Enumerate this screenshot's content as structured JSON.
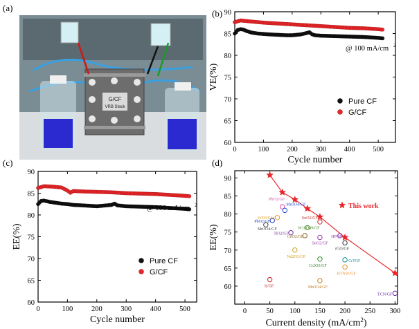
{
  "panels": {
    "a": {
      "label": "(a)",
      "photo_text": [
        "G/CF",
        "VRB Stack"
      ]
    },
    "b": {
      "label": "(b)",
      "annotation": "@ 100 mA/cm",
      "annotation_sup": "2"
    },
    "c": {
      "label": "(c)",
      "annotation": "@ 100 mA/cm",
      "annotation_sup": "2"
    },
    "d": {
      "label": "(d)",
      "this_work_label": "This work"
    }
  },
  "colors": {
    "pure_cf": "#111111",
    "gcf": "#e8262a",
    "this_work": "#e8262a"
  },
  "chart_data": [
    {
      "id": "b",
      "type": "scatter",
      "title": "",
      "xlabel": "Cycle number",
      "ylabel": "VE(%)",
      "xlim": [
        0,
        560
      ],
      "ylim": [
        60,
        90
      ],
      "xticks": [
        0,
        100,
        200,
        300,
        400,
        500
      ],
      "yticks": [
        60,
        65,
        70,
        75,
        80,
        85,
        90
      ],
      "legend": "right",
      "series": [
        {
          "name": "Pure CF",
          "x": [
            0,
            10,
            20,
            30,
            40,
            60,
            80,
            100,
            120,
            150,
            180,
            200,
            230,
            250,
            260,
            270,
            280,
            300,
            350,
            400,
            450,
            500,
            515
          ],
          "y": [
            85.0,
            85.8,
            86.0,
            85.9,
            85.6,
            85.2,
            85.0,
            84.9,
            84.8,
            84.7,
            84.6,
            84.6,
            84.8,
            85.1,
            85.3,
            84.8,
            84.6,
            84.5,
            84.4,
            84.3,
            84.2,
            84.0,
            83.9
          ]
        },
        {
          "name": "G/CF",
          "x": [
            0,
            20,
            50,
            100,
            150,
            200,
            250,
            300,
            350,
            400,
            450,
            500,
            515
          ],
          "y": [
            87.6,
            88.0,
            87.8,
            87.5,
            87.3,
            87.1,
            86.9,
            86.7,
            86.5,
            86.3,
            86.2,
            86.0,
            85.9
          ]
        }
      ]
    },
    {
      "id": "c",
      "type": "scatter",
      "title": "",
      "xlabel": "Cycle number",
      "ylabel": "EE(%)",
      "xlim": [
        0,
        540
      ],
      "ylim": [
        60,
        90
      ],
      "xticks": [
        0,
        100,
        200,
        300,
        400,
        500
      ],
      "yticks": [
        60,
        65,
        70,
        75,
        80,
        85,
        90
      ],
      "legend": "right",
      "series": [
        {
          "name": "Pure CF",
          "x": [
            0,
            10,
            20,
            40,
            60,
            80,
            100,
            120,
            150,
            200,
            250,
            260,
            270,
            300,
            350,
            400,
            450,
            500,
            515
          ],
          "y": [
            82.5,
            83.2,
            83.3,
            83.0,
            82.8,
            82.6,
            82.5,
            82.3,
            82.2,
            82.0,
            82.3,
            82.6,
            82.2,
            82.0,
            81.9,
            81.8,
            81.6,
            81.4,
            81.3
          ]
        },
        {
          "name": "G/CF",
          "x": [
            0,
            20,
            50,
            80,
            100,
            110,
            120,
            150,
            200,
            250,
            300,
            350,
            400,
            450,
            500,
            515
          ],
          "y": [
            86.2,
            86.6,
            86.5,
            86.3,
            85.6,
            85.1,
            85.5,
            85.4,
            85.3,
            85.2,
            85.0,
            84.9,
            84.8,
            84.6,
            84.4,
            84.3
          ]
        }
      ]
    },
    {
      "id": "d",
      "type": "scatter",
      "title": "",
      "xlabel": "Current density (mA/cm",
      "xlabel_sup": "2",
      "xlabel_close": ")",
      "ylabel": "EE(%)",
      "xlim": [
        -20,
        305
      ],
      "ylim": [
        55,
        92
      ],
      "xticks": [
        0,
        50,
        100,
        150,
        200,
        250,
        300
      ],
      "yticks": [
        60,
        65,
        70,
        75,
        80,
        85,
        90
      ],
      "this_work": {
        "name": "This work",
        "x": [
          50,
          75,
          100,
          125,
          150,
          200,
          300
        ],
        "y": [
          90.8,
          86.0,
          84.0,
          81.5,
          79.2,
          73.5,
          63.6
        ]
      },
      "literature": [
        {
          "label": "PbO2/GF",
          "x": 75,
          "y": 82.0,
          "color": "#d946a8"
        },
        {
          "label": "Mn3O4/GF",
          "x": 80,
          "y": 81.0,
          "color": "#1f4fcf"
        },
        {
          "label": "WO3/SAC",
          "x": 65,
          "y": 79.0,
          "color": "#e89a1a"
        },
        {
          "label": "PbO2/GF",
          "x": 55,
          "y": 78.2,
          "color": "#1f3fb0"
        },
        {
          "label": "Mn3O4/GF",
          "x": 42,
          "y": 77.0,
          "color": "#444444"
        },
        {
          "label": "SnO2/GF",
          "x": 150,
          "y": 77.8,
          "color": "#c0302c"
        },
        {
          "label": "W18O49/GF",
          "x": 125,
          "y": 76.2,
          "color": "#4b8a2a"
        },
        {
          "label": "TiO2/GF",
          "x": 92,
          "y": 74.8,
          "color": "#7b2fa0"
        },
        {
          "label": "CeO2/GF",
          "x": 120,
          "y": 74.0,
          "color": "#8a6a20"
        },
        {
          "label": "SnO2/GF",
          "x": 150,
          "y": 73.5,
          "color": "#9a3aa8"
        },
        {
          "label": "HPGF",
          "x": 190,
          "y": 74.0,
          "color": "#8a3ab0"
        },
        {
          "label": "rGO/GF",
          "x": 200,
          "y": 72.0,
          "color": "#333333"
        },
        {
          "label": "Nd2O3/GF",
          "x": 100,
          "y": 70.0,
          "color": "#c8a020"
        },
        {
          "label": "Cr2O3/GF",
          "x": 150,
          "y": 67.5,
          "color": "#2a8a2a"
        },
        {
          "label": "CrTGF",
          "x": 200,
          "y": 67.3,
          "color": "#1a8a9a"
        },
        {
          "label": "HTNW/GF",
          "x": 200,
          "y": 65.3,
          "color": "#e8902a"
        },
        {
          "label": "Ir/GF",
          "x": 50,
          "y": 61.8,
          "color": "#d02020"
        },
        {
          "label": "Mn3O4/GF",
          "x": 150,
          "y": 61.5,
          "color": "#c07a20"
        },
        {
          "label": "TCN/GF",
          "x": 300,
          "y": 58.0,
          "color": "#6a2aa0"
        }
      ]
    }
  ]
}
